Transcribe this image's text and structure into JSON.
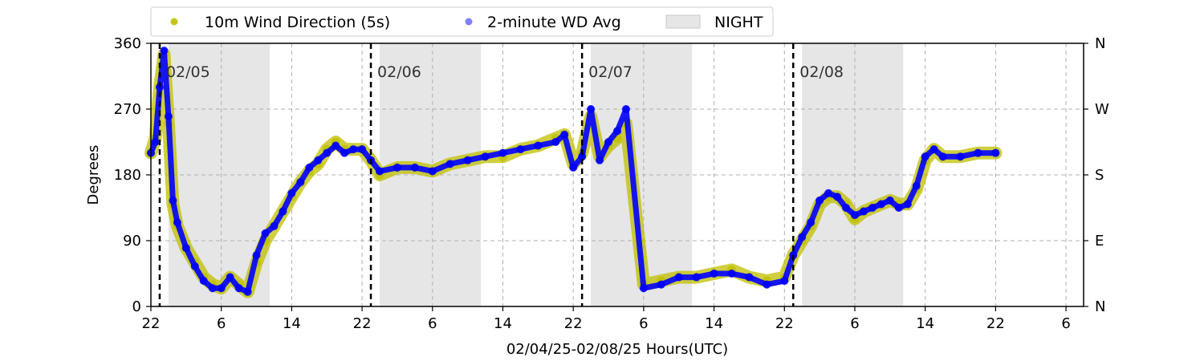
{
  "chart_data": {
    "type": "scatter",
    "xlabel": "02/04/25-02/08/25  Hours(UTC)",
    "ylabel": "Degrees",
    "xlim": [
      22,
      128
    ],
    "ylim": [
      0,
      360
    ],
    "x_ticks": [
      {
        "x": 22,
        "label": "22"
      },
      {
        "x": 30,
        "label": "6"
      },
      {
        "x": 38,
        "label": "14"
      },
      {
        "x": 46,
        "label": "22"
      },
      {
        "x": 54,
        "label": "6"
      },
      {
        "x": 62,
        "label": "14"
      },
      {
        "x": 70,
        "label": "22"
      },
      {
        "x": 78,
        "label": "6"
      },
      {
        "x": 86,
        "label": "14"
      },
      {
        "x": 94,
        "label": "22"
      },
      {
        "x": 102,
        "label": "6"
      },
      {
        "x": 110,
        "label": "14"
      },
      {
        "x": 118,
        "label": "22"
      },
      {
        "x": 126,
        "label": "6"
      }
    ],
    "y_ticks": [
      {
        "y": 0,
        "label": "0"
      },
      {
        "y": 90,
        "label": "90"
      },
      {
        "y": 180,
        "label": "180"
      },
      {
        "y": 270,
        "label": "270"
      },
      {
        "y": 360,
        "label": "360"
      }
    ],
    "y_ticks_right": [
      {
        "y": 0,
        "label": "N"
      },
      {
        "y": 90,
        "label": "E"
      },
      {
        "y": 180,
        "label": "S"
      },
      {
        "y": 270,
        "label": "W"
      },
      {
        "y": 360,
        "label": "N"
      }
    ],
    "grid": true,
    "legend": {
      "placement": "top",
      "entries": [
        {
          "name": "10m Wind Direction (5s)",
          "color": "#bfbf00",
          "kind": "marker"
        },
        {
          "name": "2-minute WD Avg",
          "color": "#0000ff",
          "kind": "marker"
        },
        {
          "name": "NIGHT",
          "color": "#e6e6e6",
          "kind": "patch"
        }
      ]
    },
    "night_spans": [
      [
        24,
        35.5
      ],
      [
        48,
        59.5
      ],
      [
        72,
        83.5
      ],
      [
        96,
        107.5
      ]
    ],
    "day_markers": [
      {
        "x": 23,
        "label": "02/05"
      },
      {
        "x": 47,
        "label": "02/06"
      },
      {
        "x": 71,
        "label": "02/07"
      },
      {
        "x": 95,
        "label": "02/08"
      }
    ],
    "series": [
      {
        "name": "10m Wind Direction (5s)",
        "color": "#bfbf00",
        "x": [
          22,
          22.5,
          23,
          23.5,
          24,
          24.5,
          25,
          26,
          27,
          28,
          29,
          30,
          31,
          32,
          33,
          34,
          35,
          36,
          37,
          38,
          39,
          40,
          41,
          42,
          43,
          44,
          45,
          46,
          47,
          48,
          50,
          52,
          54,
          56,
          58,
          60,
          62,
          64,
          66,
          68,
          69,
          70,
          71,
          72,
          73,
          74,
          75,
          76,
          78,
          80,
          82,
          84,
          86,
          88,
          90,
          92,
          94,
          95,
          96,
          97,
          98,
          99,
          100,
          101,
          102,
          103,
          104,
          105,
          106,
          107,
          108,
          109,
          110,
          111,
          112,
          114,
          116,
          118
        ],
        "y": [
          210,
          230,
          300,
          345,
          250,
          140,
          110,
          80,
          60,
          40,
          30,
          25,
          40,
          30,
          20,
          60,
          90,
          110,
          130,
          150,
          170,
          185,
          195,
          215,
          225,
          215,
          215,
          215,
          200,
          180,
          190,
          190,
          185,
          195,
          200,
          205,
          205,
          215,
          220,
          230,
          235,
          195,
          210,
          260,
          205,
          220,
          230,
          250,
          30,
          35,
          40,
          40,
          45,
          50,
          40,
          35,
          40,
          70,
          90,
          110,
          140,
          150,
          150,
          140,
          120,
          130,
          135,
          140,
          145,
          140,
          140,
          160,
          200,
          215,
          205,
          205,
          210,
          210
        ]
      },
      {
        "name": "2-minute WD Avg",
        "color": "#0000ff",
        "x": [
          22,
          22.5,
          23,
          23.5,
          24,
          24.5,
          25,
          26,
          27,
          28,
          29,
          30,
          31,
          32,
          33,
          34,
          35,
          36,
          37,
          38,
          39,
          40,
          41,
          42,
          43,
          44,
          45,
          46,
          47,
          48,
          50,
          52,
          54,
          56,
          58,
          60,
          62,
          64,
          66,
          68,
          69,
          70,
          71,
          72,
          73,
          74,
          75,
          76,
          78,
          80,
          82,
          84,
          86,
          88,
          90,
          92,
          94,
          95,
          96,
          97,
          98,
          99,
          100,
          101,
          102,
          103,
          104,
          105,
          106,
          107,
          108,
          109,
          110,
          111,
          112,
          114,
          116,
          118
        ],
        "y": [
          210,
          225,
          300,
          350,
          260,
          145,
          115,
          80,
          55,
          35,
          25,
          25,
          40,
          25,
          20,
          70,
          100,
          110,
          130,
          155,
          170,
          190,
          200,
          210,
          220,
          210,
          215,
          215,
          200,
          185,
          190,
          190,
          185,
          195,
          200,
          205,
          210,
          215,
          220,
          225,
          235,
          190,
          205,
          270,
          200,
          225,
          240,
          270,
          25,
          30,
          40,
          40,
          45,
          45,
          40,
          30,
          35,
          70,
          95,
          115,
          145,
          155,
          150,
          135,
          125,
          130,
          135,
          140,
          145,
          135,
          140,
          165,
          205,
          215,
          205,
          205,
          210,
          210
        ]
      }
    ]
  }
}
